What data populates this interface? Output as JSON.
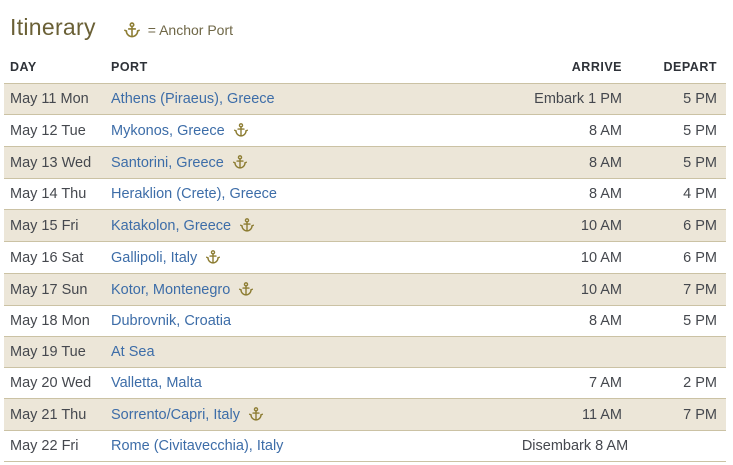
{
  "header": {
    "title": "Itinerary",
    "legend_icon": "anchor-icon",
    "legend_label": "= Anchor Port"
  },
  "table": {
    "columns": [
      "DAY",
      "PORT",
      "ARRIVE",
      "DEPART"
    ],
    "rows": [
      {
        "day": "May 11 Mon",
        "port": "Athens (Piraeus), Greece",
        "anchor_port": false,
        "arrive": "Embark 1 PM",
        "depart": "5 PM"
      },
      {
        "day": "May 12 Tue",
        "port": "Mykonos, Greece",
        "anchor_port": true,
        "arrive": "8 AM",
        "depart": "5 PM"
      },
      {
        "day": "May 13 Wed",
        "port": "Santorini, Greece",
        "anchor_port": true,
        "arrive": "8 AM",
        "depart": "5 PM"
      },
      {
        "day": "May 14 Thu",
        "port": "Heraklion (Crete), Greece",
        "anchor_port": false,
        "arrive": "8 AM",
        "depart": "4 PM"
      },
      {
        "day": "May 15 Fri",
        "port": "Katakolon, Greece",
        "anchor_port": true,
        "arrive": "10 AM",
        "depart": "6 PM"
      },
      {
        "day": "May 16 Sat",
        "port": "Gallipoli, Italy",
        "anchor_port": true,
        "arrive": "10 AM",
        "depart": "6 PM"
      },
      {
        "day": "May 17 Sun",
        "port": "Kotor, Montenegro",
        "anchor_port": true,
        "arrive": "10 AM",
        "depart": "7 PM"
      },
      {
        "day": "May 18 Mon",
        "port": "Dubrovnik, Croatia",
        "anchor_port": false,
        "arrive": "8 AM",
        "depart": "5 PM"
      },
      {
        "day": "May 19 Tue",
        "port": "At Sea",
        "anchor_port": false,
        "arrive": "",
        "depart": ""
      },
      {
        "day": "May 20 Wed",
        "port": "Valletta, Malta",
        "anchor_port": false,
        "arrive": "7 AM",
        "depart": "2 PM"
      },
      {
        "day": "May 21 Thu",
        "port": "Sorrento/Capri, Italy",
        "anchor_port": true,
        "arrive": "11 AM",
        "depart": "7 PM"
      },
      {
        "day": "May 22 Fri",
        "port": "Rome (Civitavecchia), Italy",
        "anchor_port": false,
        "arrive": "Disembark 8 AM",
        "depart": ""
      }
    ]
  },
  "colors": {
    "title_olive": "#6a6036",
    "legend_text": "#6f6747",
    "anchor_gold": "#8d7d33",
    "link_blue": "#3d6da8",
    "row_beige": "#ece6d8",
    "row_border": "#cbc2a4",
    "header_text": "#2e3238",
    "body_text": "#45484e"
  }
}
